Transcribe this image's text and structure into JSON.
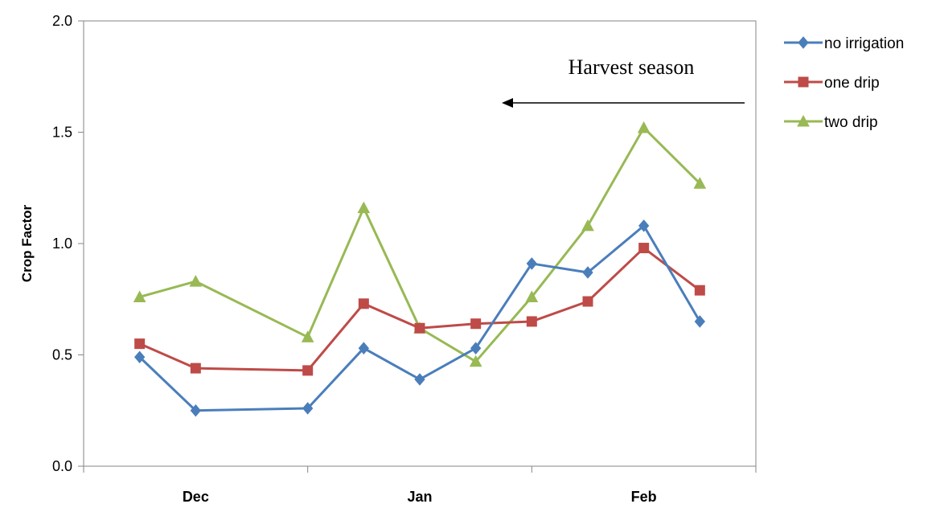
{
  "chart_data": {
    "type": "line",
    "title": "",
    "xlabel": "",
    "ylabel": "Crop Factor",
    "ylim": [
      0.0,
      2.0
    ],
    "yticks": [
      "0.0",
      "0.5",
      "1.0",
      "1.5",
      "2.0"
    ],
    "month_labels": [
      "Dec",
      "Jan",
      "Feb"
    ],
    "x": [
      1,
      2,
      4,
      5,
      6,
      7,
      8,
      9,
      10,
      11
    ],
    "x_range": [
      0,
      12
    ],
    "grid": false,
    "legend_position": "right",
    "series": [
      {
        "name": "no irrigation",
        "color": "#4a7ebb",
        "marker": "diamond",
        "values": [
          0.49,
          0.25,
          0.26,
          0.53,
          0.39,
          0.53,
          0.91,
          0.87,
          1.08,
          0.65
        ]
      },
      {
        "name": "one drip",
        "color": "#be4b48",
        "marker": "square",
        "values": [
          0.55,
          0.44,
          0.43,
          0.73,
          0.62,
          0.64,
          0.65,
          0.74,
          0.98,
          0.79
        ]
      },
      {
        "name": "two drip",
        "color": "#98b954",
        "marker": "triangle",
        "values": [
          0.76,
          0.83,
          0.58,
          1.16,
          0.62,
          0.47,
          0.76,
          1.08,
          1.52,
          1.27
        ]
      }
    ],
    "annotation": {
      "text": "Harvest season",
      "arrow_direction": "left"
    }
  }
}
